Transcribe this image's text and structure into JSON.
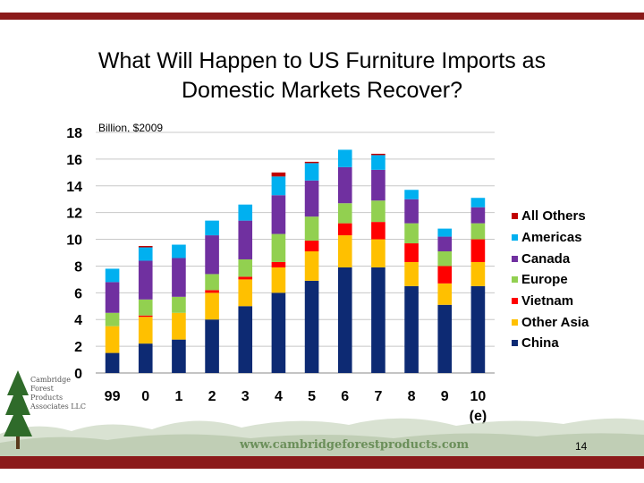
{
  "slide": {
    "title_line1": "What Will Happen to US Furniture Imports as",
    "title_line2": "Domestic Markets Recover?",
    "subtitle": "Billion, $2009",
    "footer_url": "www.cambridgeforestproducts.com",
    "page_number": "14",
    "logo_lines": [
      "Cambridge",
      "Forest",
      "Products",
      "Associates LLC"
    ],
    "colors": {
      "top_bar": "#8b1a1a",
      "hills": "#b9c9ae"
    }
  },
  "chart_data": {
    "type": "bar",
    "stacked": true,
    "title": "What Will Happen to US Furniture Imports as Domestic Markets Recover?",
    "ylabel": "Billion, $2009",
    "categories": [
      "99",
      "0",
      "1",
      "2",
      "3",
      "4",
      "5",
      "6",
      "7",
      "8",
      "9",
      "10\n(e)"
    ],
    "ylim": [
      0,
      18
    ],
    "yticks": [
      0,
      2,
      4,
      6,
      8,
      10,
      12,
      14,
      16,
      18
    ],
    "grid": true,
    "legend_position": "right",
    "series": [
      {
        "name": "China",
        "color": "#0d2a73",
        "values": [
          1.5,
          2.2,
          2.5,
          4.0,
          5.0,
          6.0,
          6.9,
          7.9,
          7.9,
          6.5,
          5.1,
          6.5
        ]
      },
      {
        "name": "Other Asia",
        "color": "#ffc000",
        "values": [
          2.0,
          2.0,
          2.0,
          2.0,
          2.0,
          1.9,
          2.2,
          2.4,
          2.1,
          1.8,
          1.6,
          1.8
        ]
      },
      {
        "name": "Vietnam",
        "color": "#ff0000",
        "values": [
          0.0,
          0.1,
          0.0,
          0.2,
          0.2,
          0.4,
          0.8,
          0.9,
          1.3,
          1.4,
          1.3,
          1.7
        ]
      },
      {
        "name": "Europe",
        "color": "#92d050",
        "values": [
          1.0,
          1.2,
          1.2,
          1.2,
          1.3,
          2.1,
          1.8,
          1.5,
          1.6,
          1.5,
          1.1,
          1.2
        ]
      },
      {
        "name": "Canada",
        "color": "#7030a0",
        "values": [
          2.3,
          2.9,
          2.9,
          2.9,
          2.9,
          2.9,
          2.7,
          2.7,
          2.3,
          1.8,
          1.1,
          1.2
        ]
      },
      {
        "name": "Americas",
        "color": "#00b0f0",
        "values": [
          1.0,
          1.0,
          1.0,
          1.1,
          1.2,
          1.4,
          1.3,
          1.3,
          1.1,
          0.7,
          0.6,
          0.7
        ]
      },
      {
        "name": "All Others",
        "color": "#c00000",
        "values": [
          0.0,
          0.1,
          0.0,
          0.0,
          0.0,
          0.3,
          0.1,
          0.0,
          0.1,
          0.0,
          0.0,
          0.0
        ]
      }
    ],
    "legend_order": [
      "All Others",
      "Americas",
      "Canada",
      "Europe",
      "Vietnam",
      "Other Asia",
      "China"
    ]
  }
}
